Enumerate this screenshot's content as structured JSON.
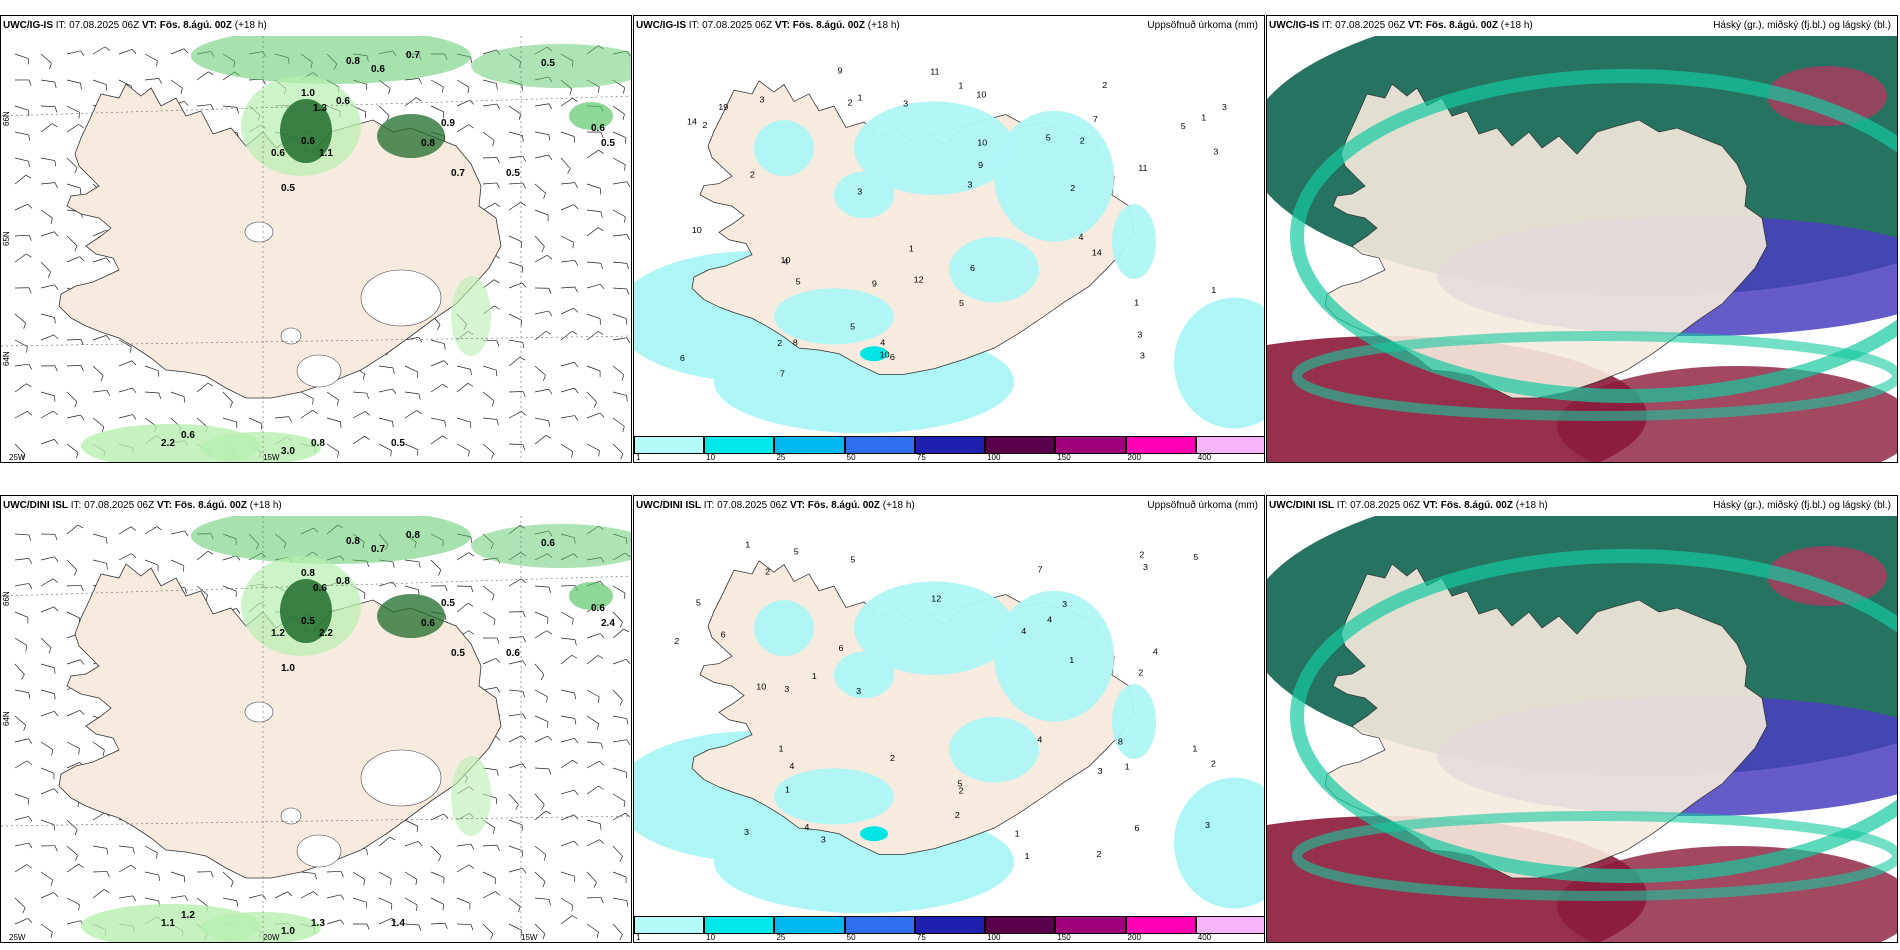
{
  "colors": {
    "land": "#f7ebdf",
    "sea": "#ffffff",
    "precip": "#aef6f6",
    "precip_mid": "#00e5e5",
    "green_light": "#b8efb0",
    "green_mid": "#5cc86b",
    "green_dark": "#1e6b2a",
    "cloud_high": "#1b6b5a",
    "cloud_mid": "#4a3ec0",
    "cloud_low": "#8b1a3a",
    "accent_teal": "#14c9a0"
  },
  "panels": [
    {
      "model": "UWC/IG-IS",
      "it_label": "IT: 07.08.2025 06Z",
      "vt_label": "VT: Fös. 8.ágú. 00Z",
      "lead": "(+18 h)",
      "right_title": "",
      "type": "wind",
      "lat_labels": [
        "66N",
        "65N",
        "64N"
      ],
      "lon_labels": [
        "25W",
        "15W"
      ],
      "values": [
        "0.5",
        "0.8",
        "0.7",
        "0.6",
        "1.0",
        "1.3",
        "0.9",
        "0.8",
        "0.6",
        "0.5",
        "0.7",
        "0.5",
        "0.6",
        "0.5",
        "2.2",
        "0.6",
        "3.0",
        "0.8",
        "0.5",
        "0.6",
        "0.6",
        "1.1"
      ]
    },
    {
      "model": "UWC/IG-IS",
      "it_label": "IT: 07.08.2025 06Z",
      "vt_label": "VT: Fös. 8.ágú. 00Z",
      "lead": "(+18 h)",
      "right_title": "Uppsöfnuð úrkoma (mm)",
      "type": "precip",
      "values": [
        "1",
        "1",
        "5",
        "7",
        "11",
        "10",
        "2",
        "4",
        "3",
        "5",
        "4",
        "3",
        "2",
        "2",
        "3",
        "10",
        "9",
        "5",
        "14",
        "3",
        "6",
        "11",
        "19",
        "10",
        "9",
        "12",
        "7",
        "14",
        "8",
        "6",
        "3",
        "2",
        "3",
        "1",
        "1",
        "1",
        "6",
        "5",
        "3",
        "2",
        "10",
        "10",
        "9",
        "3",
        "2",
        "1",
        "4",
        "2",
        "5"
      ]
    },
    {
      "model": "UWC/IG-IS",
      "it_label": "IT: 07.08.2025 06Z",
      "vt_label": "VT: Fös. 8.ágú. 00Z",
      "lead": "(+18 h)",
      "right_title": "Háský (gr.), miðský (fj.bl.) og lágský (bl.)",
      "type": "cloud"
    },
    {
      "model": "UWC/DINI ISL",
      "it_label": "IT: 07.08.2025 06Z",
      "vt_label": "VT: Fös. 8.ágú. 00Z",
      "lead": "(+18 h)",
      "right_title": "",
      "type": "wind",
      "lat_labels": [
        "66N",
        "64N"
      ],
      "lon_labels": [
        "25W",
        "20W",
        "15W"
      ],
      "values": [
        "0.6",
        "0.8",
        "0.8",
        "0.7",
        "0.8",
        "0.6",
        "0.5",
        "0.6",
        "1.2",
        "1.0",
        "0.5",
        "0.6",
        "0.6",
        "2.4",
        "1.1",
        "1.2",
        "1.0",
        "1.3",
        "1.4",
        "0.5",
        "0.8",
        "2.2"
      ]
    },
    {
      "model": "UWC/DINI ISL",
      "it_label": "IT: 07.08.2025 06Z",
      "vt_label": "VT: Fös. 8.ágú. 00Z",
      "lead": "(+18 h)",
      "right_title": "Uppsöfnuð úrkoma (mm)",
      "type": "precip",
      "values": [
        "1",
        "2",
        "2",
        "3",
        "5",
        "6",
        "5",
        "3",
        "1",
        "2",
        "4",
        "3",
        "2",
        "1",
        "3",
        "2",
        "1",
        "4",
        "7",
        "12",
        "6",
        "8",
        "6",
        "10",
        "5",
        "4",
        "3",
        "2",
        "1",
        "1",
        "2",
        "4",
        "3",
        "1",
        "2",
        "3",
        "5",
        "2",
        "3",
        "1",
        "1",
        "4",
        "4",
        "5"
      ]
    },
    {
      "model": "UWC/DINI ISL",
      "it_label": "IT: 07.08.2025 06Z",
      "vt_label": "VT: Fös. 8.ágú. 00Z",
      "lead": "(+18 h)",
      "right_title": "Háský (gr.), miðský (fj.bl.) og lágský (bl.)",
      "type": "cloud"
    }
  ],
  "legend": {
    "ticks": [
      "1",
      "10",
      "25",
      "50",
      "75",
      "100",
      "150",
      "200",
      "400"
    ],
    "colors": [
      "#b4f8f8",
      "#00e8e8",
      "#00b8f0",
      "#2e6ff0",
      "#2020b0",
      "#5a004a",
      "#a0007a",
      "#ff00b4",
      "#f8b4f8"
    ]
  }
}
